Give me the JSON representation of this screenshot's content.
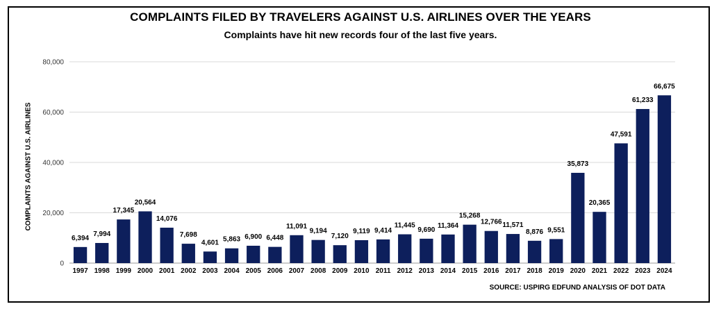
{
  "chart_data": {
    "type": "bar",
    "title": "COMPLAINTS FILED BY TRAVELERS AGAINST U.S. AIRLINES OVER THE YEARS",
    "subtitle": "Complaints have hit new records four of the last five years.",
    "xlabel": "",
    "ylabel": "COMPLAINTS AGAINST U.S. AIRLINES",
    "source": "SOURCE: USPIRG EDFUND ANALYSIS OF DOT DATA",
    "ylim": [
      0,
      80000
    ],
    "yticks": [
      0,
      20000,
      40000,
      60000,
      80000
    ],
    "ytick_labels": [
      "0",
      "20,000",
      "40,000",
      "60,000",
      "80,000"
    ],
    "grid": true,
    "bar_color": "#0d1f5c",
    "categories": [
      "1997",
      "1998",
      "1999",
      "2000",
      "2001",
      "2002",
      "2003",
      "2004",
      "2005",
      "2006",
      "2007",
      "2008",
      "2009",
      "2010",
      "2011",
      "2012",
      "2013",
      "2014",
      "2015",
      "2016",
      "2017",
      "2018",
      "2019",
      "2020",
      "2021",
      "2022",
      "2023",
      "2024"
    ],
    "values": [
      6394,
      7994,
      17345,
      20564,
      14076,
      7698,
      4601,
      5863,
      6900,
      6448,
      11091,
      9194,
      7120,
      9119,
      9414,
      11445,
      9690,
      11364,
      15268,
      12766,
      11571,
      8876,
      9551,
      35873,
      20365,
      47591,
      61233,
      66675
    ],
    "value_labels": [
      "6,394",
      "7,994",
      "17,345",
      "20,564",
      "14,076",
      "7,698",
      "4,601",
      "5,863",
      "6,900",
      "6,448",
      "11,091",
      "9,194",
      "7,120",
      "9,119",
      "9,414",
      "11,445",
      "9,690",
      "11,364",
      "15,268",
      "12,766",
      "11,571",
      "8,876",
      "9,551",
      "35,873",
      "20,365",
      "47,591",
      "61,233",
      "66,675"
    ]
  }
}
